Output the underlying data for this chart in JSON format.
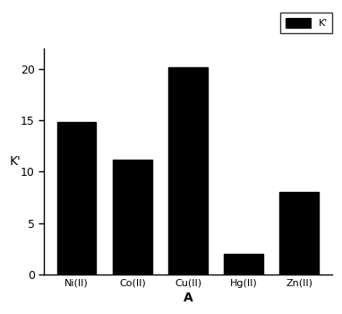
{
  "categories": [
    "Ni(II)",
    "Co(II)",
    "Cu(II)",
    "Hg(II)",
    "Zn(II)"
  ],
  "values": [
    14.8,
    11.2,
    20.2,
    2.0,
    8.0
  ],
  "bar_color": "#000000",
  "title": "",
  "xlabel": "A",
  "ylabel": "K'",
  "ylim": [
    0,
    22
  ],
  "yticks": [
    0,
    5,
    10,
    15,
    20
  ],
  "legend_label": "K'",
  "background_color": "#ffffff",
  "bar_width": 0.7
}
